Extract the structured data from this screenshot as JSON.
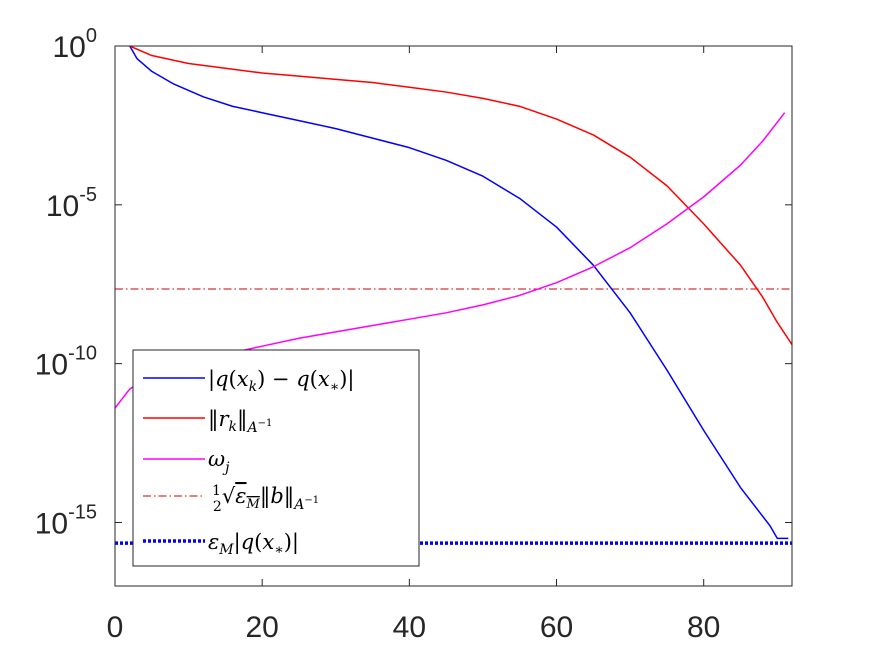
{
  "chart_data": {
    "type": "line",
    "title": "",
    "xlabel": "",
    "ylabel": "",
    "xlim": [
      0,
      92
    ],
    "ylim_log10": [
      -17,
      0
    ],
    "yscale": "log",
    "grid": false,
    "legend_position": "bottom-left",
    "x_ticks": [
      0,
      20,
      40,
      60,
      80
    ],
    "x_tick_labels": [
      "0",
      "20",
      "40",
      "60",
      "80"
    ],
    "y_ticks_log10": [
      0,
      -5,
      -10,
      -15
    ],
    "y_tick_labels": [
      {
        "base": "10",
        "exp": "0"
      },
      {
        "base": "10",
        "exp": "-5"
      },
      {
        "base": "10",
        "exp": "-10"
      },
      {
        "base": "10",
        "exp": "-15"
      }
    ],
    "series": [
      {
        "name": "|q(x_k) − q(x_*)|",
        "color": "#0000ff",
        "style": "solid",
        "x": [
          2,
          3,
          5,
          8,
          12,
          16,
          20,
          25,
          30,
          35,
          40,
          45,
          50,
          55,
          60,
          65,
          70,
          75,
          80,
          85,
          89,
          90,
          91.5
        ],
        "log10_y": [
          0,
          -0.4,
          -0.8,
          -1.2,
          -1.6,
          -1.9,
          -2.1,
          -2.35,
          -2.6,
          -2.9,
          -3.2,
          -3.6,
          -4.1,
          -4.8,
          -5.7,
          -6.9,
          -8.4,
          -10.2,
          -12.1,
          -13.9,
          -15.1,
          -15.5,
          -15.5
        ]
      },
      {
        "name": "||r_k||_{A^-1}",
        "color": "#ff0000",
        "style": "solid",
        "x": [
          2,
          5,
          10,
          15,
          20,
          25,
          30,
          35,
          40,
          45,
          50,
          55,
          60,
          65,
          70,
          75,
          80,
          85,
          88,
          90,
          92
        ],
        "log10_y": [
          0,
          -0.3,
          -0.55,
          -0.7,
          -0.85,
          -0.95,
          -1.05,
          -1.15,
          -1.3,
          -1.45,
          -1.65,
          -1.9,
          -2.3,
          -2.8,
          -3.5,
          -4.4,
          -5.6,
          -6.9,
          -7.9,
          -8.7,
          -9.4
        ]
      },
      {
        "name": "ω_j",
        "color": "#ff00ff",
        "style": "solid",
        "x": [
          0,
          1,
          2,
          4,
          6,
          8,
          10,
          15,
          20,
          25,
          30,
          35,
          40,
          45,
          50,
          55,
          60,
          65,
          70,
          75,
          80,
          85,
          88,
          91
        ],
        "log10_y": [
          -11.4,
          -11.1,
          -10.8,
          -10.5,
          -10.3,
          -10.15,
          -10.0,
          -9.7,
          -9.45,
          -9.2,
          -9.0,
          -8.8,
          -8.6,
          -8.4,
          -8.15,
          -7.85,
          -7.45,
          -6.95,
          -6.35,
          -5.6,
          -4.75,
          -3.75,
          -3.0,
          -2.1
        ]
      },
      {
        "name": "½ √ε_M ||b||_{A^-1}",
        "color": "#cc0000",
        "style": "dashdot",
        "constant_log10_y": -7.65
      },
      {
        "name": "ε_M |q(x_*)|",
        "color": "#0000ff",
        "style": "dotted",
        "constant_log10_y": -15.65
      }
    ]
  },
  "legend": {
    "entries": [
      {
        "color": "#0000ff",
        "style": "solid",
        "label": "|q(x_k) − q(x_*)|"
      },
      {
        "color": "#ff0000",
        "style": "solid",
        "label": "||r_k||_{A^-1}"
      },
      {
        "color": "#ff00ff",
        "style": "solid",
        "label": "ω_j"
      },
      {
        "color": "#cc0000",
        "style": "dashdot",
        "label": "½ √ε_M ||b||_{A^-1}"
      },
      {
        "color": "#0000ff",
        "style": "dotted",
        "label": "ε_M |q(x_*)|"
      }
    ]
  }
}
